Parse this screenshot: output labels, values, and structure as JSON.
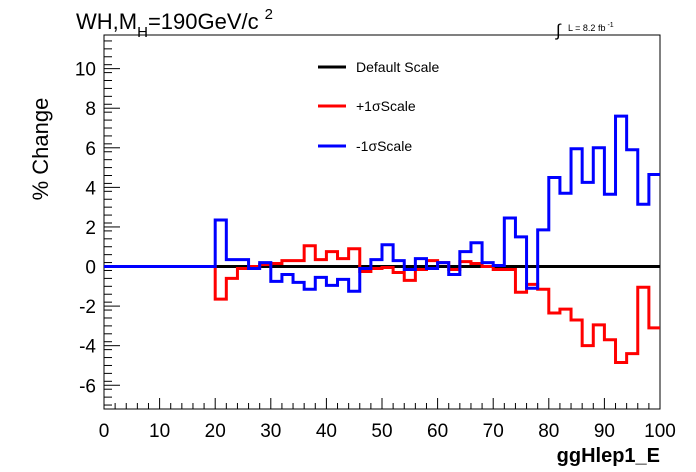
{
  "chart_data": {
    "type": "line",
    "title": "WH,M",
    "title_sub": "H",
    "title_tail": "=190GeV/c",
    "title_sup": "2",
    "lumi_label": "L = 8.2 fb",
    "lumi_sup": "-1",
    "lumi_integral": "∫",
    "xlabel": "ggHlep1_E",
    "ylabel": "% Change",
    "xlim": [
      0,
      100
    ],
    "ylim": [
      -7.2,
      11.7
    ],
    "xticks": [
      0,
      10,
      20,
      30,
      40,
      50,
      60,
      70,
      80,
      90,
      100
    ],
    "yticks": [
      -6,
      -4,
      -2,
      0,
      2,
      4,
      6,
      8,
      10
    ],
    "bin_edges": [
      0,
      2,
      4,
      6,
      8,
      10,
      12,
      14,
      16,
      18,
      20,
      22,
      24,
      26,
      28,
      30,
      32,
      34,
      36,
      38,
      40,
      42,
      44,
      46,
      48,
      50,
      52,
      54,
      56,
      58,
      60,
      62,
      64,
      66,
      68,
      70,
      72,
      74,
      76,
      78,
      80,
      82,
      84,
      86,
      88,
      90,
      92,
      94,
      96,
      98,
      100
    ],
    "legend_position": "top-center",
    "series": [
      {
        "name": "Default Scale",
        "color": "#000000",
        "values": [
          0,
          0,
          0,
          0,
          0,
          0,
          0,
          0,
          0,
          0,
          0,
          0,
          0,
          0,
          0,
          0,
          0,
          0,
          0,
          0,
          0,
          0,
          0,
          0,
          0,
          0,
          0,
          0,
          0,
          0,
          0,
          0,
          0,
          0,
          0,
          0,
          0,
          0,
          0,
          0,
          0,
          0,
          0,
          0,
          0,
          0,
          0,
          0,
          0,
          0
        ]
      },
      {
        "name": "+1σScale",
        "color": "#ff0000",
        "values": [
          0,
          0,
          0,
          0,
          0,
          0,
          0,
          0,
          0,
          0,
          -1.65,
          -0.6,
          -0.1,
          0,
          0.1,
          0.15,
          0.3,
          0.3,
          1.05,
          0.35,
          0.75,
          0.4,
          0.9,
          -0.25,
          -0.1,
          -0.05,
          -0.3,
          -0.7,
          -0.15,
          0.3,
          0.2,
          -0.15,
          0.25,
          0.15,
          0,
          -0.15,
          -0.15,
          -1.3,
          -0.9,
          -1.15,
          -2.35,
          -2.15,
          -2.7,
          -4,
          -2.95,
          -3.7,
          -4.85,
          -4.4,
          -1.05,
          -3.1
        ]
      },
      {
        "name": "-1σScale",
        "color": "#0000ff",
        "values": [
          0,
          0,
          0,
          0,
          0,
          0,
          0,
          0,
          0,
          0,
          2.35,
          0.35,
          0.35,
          -0.1,
          0.2,
          -0.75,
          -0.4,
          -0.8,
          -1.15,
          -0.55,
          -0.95,
          -0.65,
          -1.25,
          -0.1,
          0.35,
          1.1,
          0.3,
          -0.15,
          0.4,
          -0.1,
          0.2,
          -0.4,
          0.75,
          1.2,
          0.2,
          0.05,
          2.45,
          1.5,
          -1.1,
          1.85,
          4.5,
          3.7,
          5.95,
          4.25,
          6,
          3.65,
          7.6,
          5.9,
          3.15,
          4.65
        ]
      }
    ]
  }
}
